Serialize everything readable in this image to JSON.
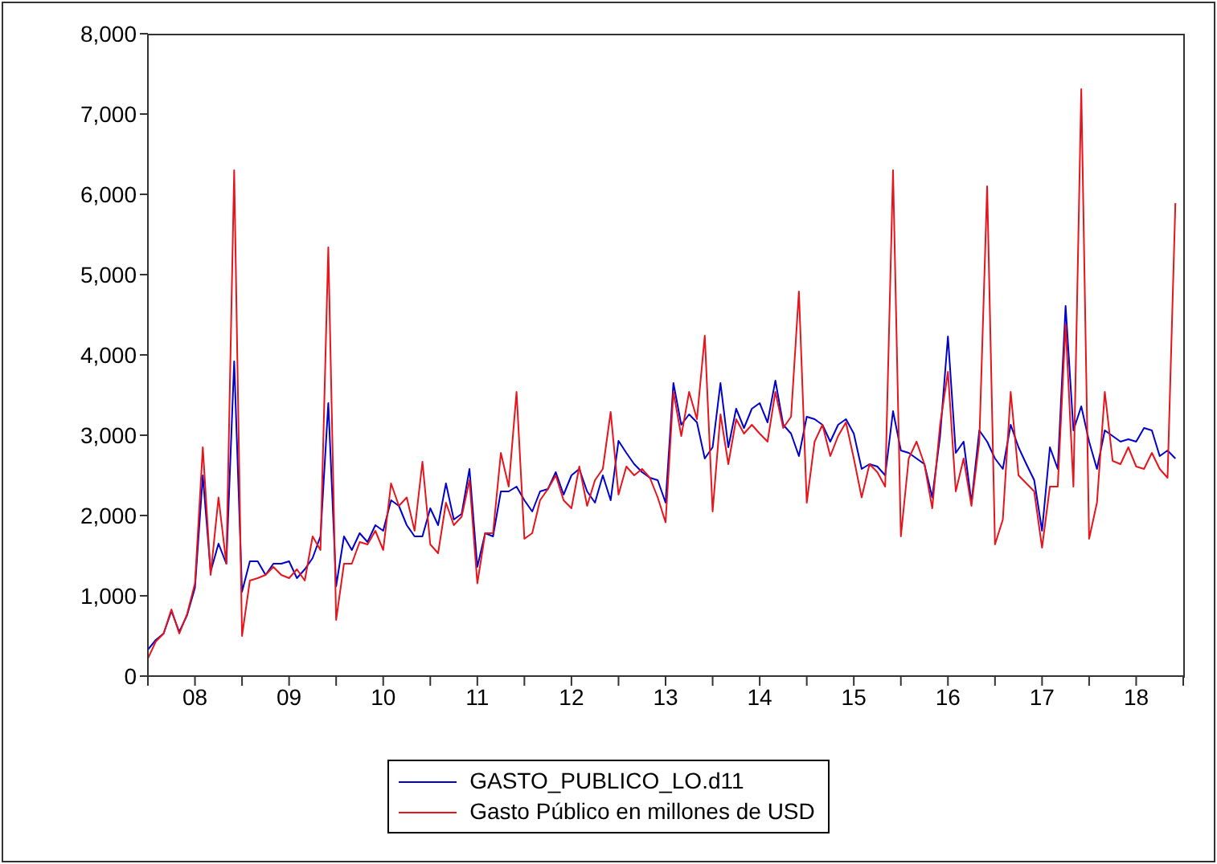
{
  "chart_data": {
    "type": "line",
    "x": [
      "2008-01",
      "2008-02",
      "2008-03",
      "2008-04",
      "2008-05",
      "2008-06",
      "2008-07",
      "2008-08",
      "2008-09",
      "2008-10",
      "2008-11",
      "2008-12",
      "2009-01",
      "2009-02",
      "2009-03",
      "2009-04",
      "2009-05",
      "2009-06",
      "2009-07",
      "2009-08",
      "2009-09",
      "2009-10",
      "2009-11",
      "2009-12",
      "2010-01",
      "2010-02",
      "2010-03",
      "2010-04",
      "2010-05",
      "2010-06",
      "2010-07",
      "2010-08",
      "2010-09",
      "2010-10",
      "2010-11",
      "2010-12",
      "2011-01",
      "2011-02",
      "2011-03",
      "2011-04",
      "2011-05",
      "2011-06",
      "2011-07",
      "2011-08",
      "2011-09",
      "2011-10",
      "2011-11",
      "2011-12",
      "2012-01",
      "2012-02",
      "2012-03",
      "2012-04",
      "2012-05",
      "2012-06",
      "2012-07",
      "2012-08",
      "2012-09",
      "2012-10",
      "2012-11",
      "2012-12",
      "2013-01",
      "2013-02",
      "2013-03",
      "2013-04",
      "2013-05",
      "2013-06",
      "2013-07",
      "2013-08",
      "2013-09",
      "2013-10",
      "2013-11",
      "2013-12",
      "2014-01",
      "2014-02",
      "2014-03",
      "2014-04",
      "2014-05",
      "2014-06",
      "2014-07",
      "2014-08",
      "2014-09",
      "2014-10",
      "2014-11",
      "2014-12",
      "2015-01",
      "2015-02",
      "2015-03",
      "2015-04",
      "2015-05",
      "2015-06",
      "2015-07",
      "2015-08",
      "2015-09",
      "2015-10",
      "2015-11",
      "2015-12",
      "2016-01",
      "2016-02",
      "2016-03",
      "2016-04",
      "2016-05",
      "2016-06",
      "2016-07",
      "2016-08",
      "2016-09",
      "2016-10",
      "2016-11",
      "2016-12",
      "2017-01",
      "2017-02",
      "2017-03",
      "2017-04",
      "2017-05",
      "2017-06",
      "2017-07",
      "2017-08",
      "2017-09",
      "2017-10",
      "2017-11",
      "2017-12",
      "2018-01",
      "2018-02",
      "2018-03",
      "2018-04",
      "2018-05",
      "2018-06",
      "2018-07",
      "2018-08",
      "2018-09",
      "2018-10",
      "2018-11",
      "2018-12"
    ],
    "series": [
      {
        "name": "GASTO_PUBLICO_LO.d11",
        "color": "#0000cc",
        "values": [
          330,
          450,
          530,
          810,
          550,
          760,
          1100,
          2500,
          1300,
          1650,
          1400,
          3920,
          1050,
          1430,
          1430,
          1260,
          1400,
          1400,
          1430,
          1220,
          1330,
          1470,
          1740,
          3400,
          1120,
          1740,
          1570,
          1780,
          1670,
          1880,
          1810,
          2190,
          2120,
          1880,
          1740,
          1740,
          2090,
          1880,
          2400,
          1950,
          2020,
          2580,
          1360,
          1780,
          1740,
          2300,
          2300,
          2360,
          2190,
          2050,
          2300,
          2330,
          2540,
          2260,
          2500,
          2580,
          2300,
          2160,
          2500,
          2190,
          2930,
          2780,
          2640,
          2540,
          2470,
          2440,
          2160,
          3650,
          3130,
          3260,
          3160,
          2710,
          2850,
          3650,
          2850,
          3330,
          3090,
          3330,
          3400,
          3160,
          3680,
          3130,
          3020,
          2740,
          3230,
          3200,
          3130,
          2920,
          3130,
          3200,
          3020,
          2580,
          2640,
          2610,
          2500,
          3300,
          2810,
          2780,
          2710,
          2640,
          2225,
          2990,
          4230,
          2780,
          2920,
          2160,
          3060,
          2920,
          2710,
          2580,
          3130,
          2850,
          2640,
          2440,
          1810,
          2850,
          2580,
          4610,
          3060,
          3360,
          2920,
          2580,
          3060,
          2990,
          2920,
          2950,
          2920,
          3090,
          3060,
          2740,
          2810,
          2710
        ]
      },
      {
        "name": "Gasto Público en millones de USD",
        "color": "#e8141c",
        "values": [
          220,
          430,
          530,
          830,
          530,
          775,
          1155,
          2850,
          1260,
          2225,
          1400,
          6300,
          500,
          1190,
          1220,
          1260,
          1360,
          1260,
          1220,
          1330,
          1190,
          1740,
          1570,
          5340,
          700,
          1400,
          1400,
          1670,
          1640,
          1810,
          1570,
          2400,
          2120,
          2225,
          1810,
          2670,
          1640,
          1530,
          2160,
          1880,
          1985,
          2440,
          1155,
          1780,
          1780,
          2780,
          2360,
          3540,
          1710,
          1780,
          2190,
          2330,
          2500,
          2190,
          2090,
          2610,
          2120,
          2440,
          2580,
          3290,
          2260,
          2610,
          2500,
          2580,
          2470,
          2225,
          1915,
          3540,
          2990,
          3540,
          3200,
          4240,
          2050,
          3260,
          2640,
          3200,
          3020,
          3130,
          3020,
          2920,
          3540,
          3090,
          3230,
          4790,
          2160,
          2920,
          3130,
          2740,
          2990,
          3160,
          2710,
          2225,
          2640,
          2540,
          2360,
          6300,
          1740,
          2710,
          2920,
          2640,
          2090,
          3130,
          3790,
          2300,
          2710,
          2120,
          2920,
          6100,
          1640,
          1950,
          3540,
          2500,
          2400,
          2300,
          1600,
          2360,
          2360,
          4380,
          2360,
          7310,
          1710,
          2160,
          3540,
          2680,
          2640,
          2850,
          2610,
          2580,
          2780,
          2580,
          2470,
          5890
        ]
      }
    ],
    "xlim": [
      "2008-01",
      "2019-01"
    ],
    "xticks": [
      {
        "value": "2008-01",
        "label": null
      },
      {
        "value": "2008-07",
        "label": "08"
      },
      {
        "value": "2009-01",
        "label": null
      },
      {
        "value": "2009-07",
        "label": "09"
      },
      {
        "value": "2010-01",
        "label": null
      },
      {
        "value": "2010-07",
        "label": "10"
      },
      {
        "value": "2011-01",
        "label": null
      },
      {
        "value": "2011-07",
        "label": "11"
      },
      {
        "value": "2012-01",
        "label": null
      },
      {
        "value": "2012-07",
        "label": "12"
      },
      {
        "value": "2013-01",
        "label": null
      },
      {
        "value": "2013-07",
        "label": "13"
      },
      {
        "value": "2014-01",
        "label": null
      },
      {
        "value": "2014-07",
        "label": "14"
      },
      {
        "value": "2015-01",
        "label": null
      },
      {
        "value": "2015-07",
        "label": "15"
      },
      {
        "value": "2016-01",
        "label": null
      },
      {
        "value": "2016-07",
        "label": "16"
      },
      {
        "value": "2017-01",
        "label": null
      },
      {
        "value": "2017-07",
        "label": "17"
      },
      {
        "value": "2018-01",
        "label": null
      },
      {
        "value": "2018-07",
        "label": "18"
      },
      {
        "value": "2019-01",
        "label": null
      }
    ],
    "ylim": [
      0,
      8000
    ],
    "yticks": [
      0,
      {
        "value": 1000,
        "label": "1,000"
      },
      {
        "value": 2000,
        "label": "2,000"
      },
      {
        "value": 3000,
        "label": "3,000"
      },
      {
        "value": 4000,
        "label": "4,000"
      },
      {
        "value": 5000,
        "label": "5,000"
      },
      {
        "value": 6000,
        "label": "6,000"
      },
      {
        "value": 7000,
        "label": "7,000"
      },
      {
        "value": 8000,
        "label": "8,000"
      }
    ],
    "grid": false,
    "legend": "bottom",
    "marker": "none",
    "line_style": "solid"
  }
}
